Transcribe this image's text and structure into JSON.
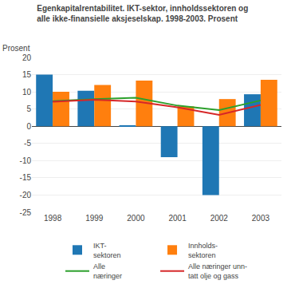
{
  "chart_data": {
    "type": "bar",
    "title": "Egenkapitalrentabilitet. IKT-sektor, innholdssektoren og\nalle ikke-finansielle aksjeselskap. 1998-2003. Prosent",
    "ylabel": "Prosent",
    "categories": [
      "1998",
      "1999",
      "2000",
      "2001",
      "2002",
      "2003"
    ],
    "series": [
      {
        "name": "IKT-\nsektoren",
        "type": "bar",
        "values": [
          15.0,
          10.3,
          0.3,
          -9.0,
          -20.0,
          9.3
        ]
      },
      {
        "name": "Innholds-\nsektoren",
        "type": "bar",
        "values": [
          10.0,
          12.0,
          13.3,
          5.8,
          7.9,
          13.5
        ]
      },
      {
        "name": "Alle\nnæringer",
        "type": "line",
        "values": [
          7.3,
          7.9,
          8.3,
          6.0,
          4.7,
          7.5
        ]
      },
      {
        "name": "Alle næringer unn-\ntatt olje og gass",
        "type": "line",
        "values": [
          7.1,
          7.7,
          7.2,
          5.5,
          3.3,
          6.2
        ]
      }
    ],
    "ylim": [
      -25,
      20
    ],
    "yticks": [
      -25,
      -20,
      -15,
      -10,
      -5,
      0,
      5,
      10,
      15,
      20
    ],
    "grid": true,
    "legend": "bottom"
  }
}
